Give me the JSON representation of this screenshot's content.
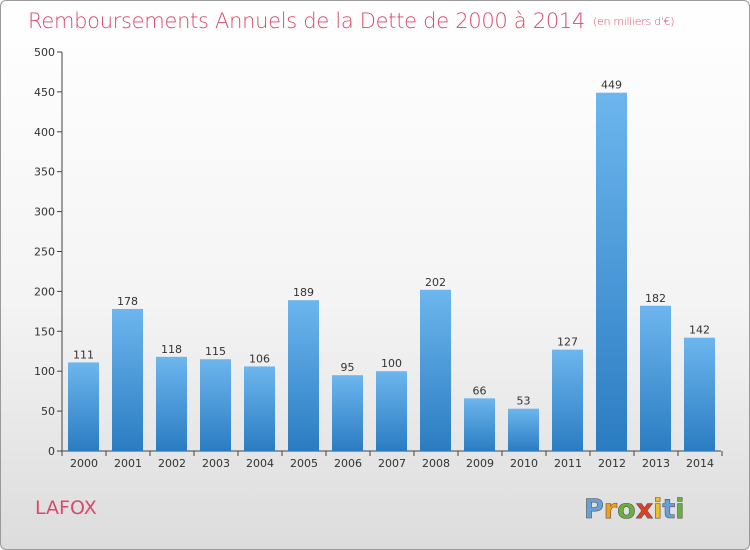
{
  "title": "Remboursements Annuels de la Dette de 2000 à 2014",
  "unit_note": "(en milliers d'€)",
  "place_name": "LAFOX",
  "brand": {
    "name": "Proxiti",
    "letters": [
      "P",
      "r",
      "o",
      "x",
      "i",
      "t",
      "i"
    ],
    "colors": [
      "#6aa0d8",
      "#f0a020",
      "#6ab040",
      "#e04020",
      "#f0c020",
      "#6aa0d8",
      "#6ab040"
    ]
  },
  "colors": {
    "bar_light": "#6db6ee",
    "bar_dark": "#2a7cc2",
    "title": "#d94a6a"
  },
  "chart_data": {
    "type": "bar",
    "categories": [
      "2000",
      "2001",
      "2002",
      "2003",
      "2004",
      "2005",
      "2006",
      "2007",
      "2008",
      "2009",
      "2010",
      "2011",
      "2012",
      "2013",
      "2014"
    ],
    "values": [
      111,
      178,
      118,
      115,
      106,
      189,
      95,
      100,
      202,
      66,
      53,
      127,
      449,
      182,
      142
    ],
    "ylim": [
      0,
      500
    ],
    "yticks": [
      0,
      50,
      100,
      150,
      200,
      250,
      300,
      350,
      400,
      450,
      500
    ],
    "grid": false,
    "legend": "none"
  }
}
